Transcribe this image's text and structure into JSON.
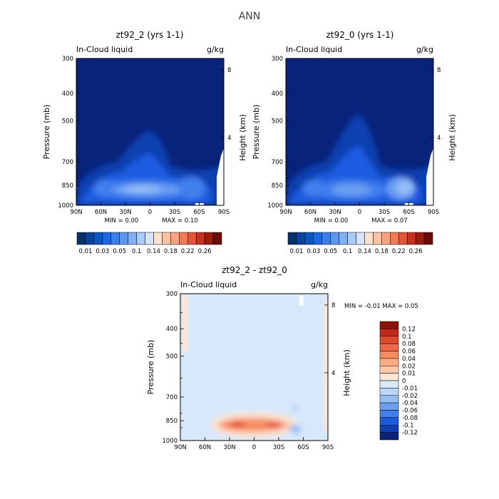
{
  "page_title": "ANN",
  "chart_data": [
    {
      "type": "heatmap",
      "panel": "top-left",
      "title": "zt92_2 (yrs 1-1)",
      "subtitle_left": "In-Cloud liquid",
      "subtitle_right": "g/kg",
      "xlabel": "",
      "ylabel": "Pressure (mb)",
      "ylabel_right": "Height (km)",
      "x_ticks": [
        "90N",
        "60N",
        "30N",
        "0",
        "30S",
        "60S",
        "90S"
      ],
      "x_range": [
        90,
        -90
      ],
      "y_ticks": [
        "300",
        "400",
        "500",
        "700",
        "850",
        "1000"
      ],
      "y_tick_values": [
        300,
        400,
        500,
        700,
        850,
        1000
      ],
      "y_range": [
        300,
        1000
      ],
      "y_scale": "log",
      "y_ticks_right": [
        "8",
        "4"
      ],
      "y_tick_values_right": [
        8,
        4
      ],
      "min_label": "MIN =",
      "min_value": "0.00",
      "max_label": "MAX =",
      "max_value": "0.10",
      "features": [
        {
          "lat": 10,
          "p": 870,
          "value": 0.09
        },
        {
          "lat": 50,
          "p": 860,
          "value": 0.08
        },
        {
          "lat": -45,
          "p": 870,
          "value": 0.08
        },
        {
          "lat": 0,
          "p": 700,
          "value": 0.05
        },
        {
          "lat": 0,
          "p": 560,
          "value": 0.03
        },
        {
          "lat": 60,
          "p": 780,
          "value": 0.04
        },
        {
          "lat": -30,
          "p": 750,
          "value": 0.04
        }
      ],
      "colorbar": {
        "orientation": "horizontal",
        "colors": [
          "#08306b",
          "#08449e",
          "#0a55c8",
          "#1c66e8",
          "#3a7ff0",
          "#5a96f2",
          "#80b0f5",
          "#a8cbf8",
          "#d5e6fb",
          "#fde2d0",
          "#fcc2a4",
          "#fba27e",
          "#f47a56",
          "#e5553a",
          "#c9301e",
          "#9c1b0e",
          "#6b0a06"
        ],
        "labels": [
          "0.01",
          "0.03",
          "0.05",
          "0.1",
          "0.14",
          "0.18",
          "0.22",
          "0.26"
        ]
      }
    },
    {
      "type": "heatmap",
      "panel": "top-right",
      "title": "zt92_0 (yrs 1-1)",
      "subtitle_left": "In-Cloud liquid",
      "subtitle_right": "g/kg",
      "xlabel": "",
      "ylabel": "Pressure (mb)",
      "ylabel_right": "Height (km)",
      "x_ticks": [
        "90N",
        "60N",
        "30N",
        "0",
        "30S",
        "60S",
        "90S"
      ],
      "x_range": [
        90,
        -90
      ],
      "y_ticks": [
        "300",
        "400",
        "500",
        "700",
        "850",
        "1000"
      ],
      "y_tick_values": [
        300,
        400,
        500,
        700,
        850,
        1000
      ],
      "y_range": [
        300,
        1000
      ],
      "y_scale": "log",
      "y_ticks_right": [
        "8",
        "4"
      ],
      "y_tick_values_right": [
        8,
        4
      ],
      "min_label": "MIN =",
      "min_value": "0.00",
      "max_label": "MAX =",
      "max_value": "0.07",
      "features": [
        {
          "lat": 55,
          "p": 870,
          "value": 0.06
        },
        {
          "lat": -55,
          "p": 860,
          "value": 0.07
        },
        {
          "lat": 10,
          "p": 880,
          "value": 0.05
        },
        {
          "lat": 0,
          "p": 700,
          "value": 0.04
        },
        {
          "lat": 0,
          "p": 480,
          "value": 0.02
        },
        {
          "lat": 60,
          "p": 760,
          "value": 0.03
        }
      ],
      "colorbar": {
        "orientation": "horizontal",
        "colors": [
          "#08306b",
          "#08449e",
          "#0a55c8",
          "#1c66e8",
          "#3a7ff0",
          "#5a96f2",
          "#80b0f5",
          "#a8cbf8",
          "#d5e6fb",
          "#fde2d0",
          "#fcc2a4",
          "#fba27e",
          "#f47a56",
          "#e5553a",
          "#c9301e",
          "#9c1b0e",
          "#6b0a06"
        ],
        "labels": [
          "0.01",
          "0.03",
          "0.05",
          "0.1",
          "0.14",
          "0.18",
          "0.22",
          "0.26"
        ]
      }
    },
    {
      "type": "heatmap",
      "panel": "bottom",
      "title": "zt92_2 - zt92_0",
      "subtitle_left": "In-Cloud liquid",
      "subtitle_right": "g/kg",
      "xlabel": "",
      "ylabel": "Pressure (mb)",
      "ylabel_right": "Height (km)",
      "x_ticks": [
        "90N",
        "60N",
        "30N",
        "0",
        "30S",
        "60S",
        "90S"
      ],
      "x_range": [
        90,
        -90
      ],
      "y_ticks": [
        "300",
        "400",
        "500",
        "700",
        "850",
        "1000"
      ],
      "y_tick_values": [
        300,
        400,
        500,
        700,
        850,
        1000
      ],
      "y_range": [
        300,
        1000
      ],
      "y_scale": "log",
      "y_ticks_right": [
        "8",
        "4"
      ],
      "y_tick_values_right": [
        8,
        4
      ],
      "min_label": "MIN =",
      "min_value": "-0.01",
      "max_label": "MAX =",
      "max_value": "0.05",
      "features": [
        {
          "lat": 20,
          "p": 870,
          "value": 0.05
        },
        {
          "lat": -25,
          "p": 880,
          "value": 0.05
        },
        {
          "lat": 0,
          "p": 870,
          "value": 0.04
        },
        {
          "lat": -50,
          "p": 910,
          "value": -0.01
        },
        {
          "lat": 80,
          "p": 330,
          "value": 0.005
        }
      ],
      "colorbar": {
        "orientation": "vertical",
        "colors": [
          "#08237a",
          "#0b3fb0",
          "#1a5ce0",
          "#3f7fee",
          "#6a9ff2",
          "#94bdf5",
          "#bcd6f9",
          "#d9e8fb",
          "#fbe6d5",
          "#fcc8a6",
          "#fbab80",
          "#f78b5f",
          "#f26a45",
          "#de4a2c",
          "#c02a1a",
          "#8e1106"
        ],
        "labels": [
          "0.12",
          "0.1",
          "0.08",
          "0.06",
          "0.04",
          "0.02",
          "0.01",
          "0",
          "-0.01",
          "-0.02",
          "-0.04",
          "-0.06",
          "-0.08",
          "-0.1",
          "-0.12"
        ]
      }
    }
  ]
}
